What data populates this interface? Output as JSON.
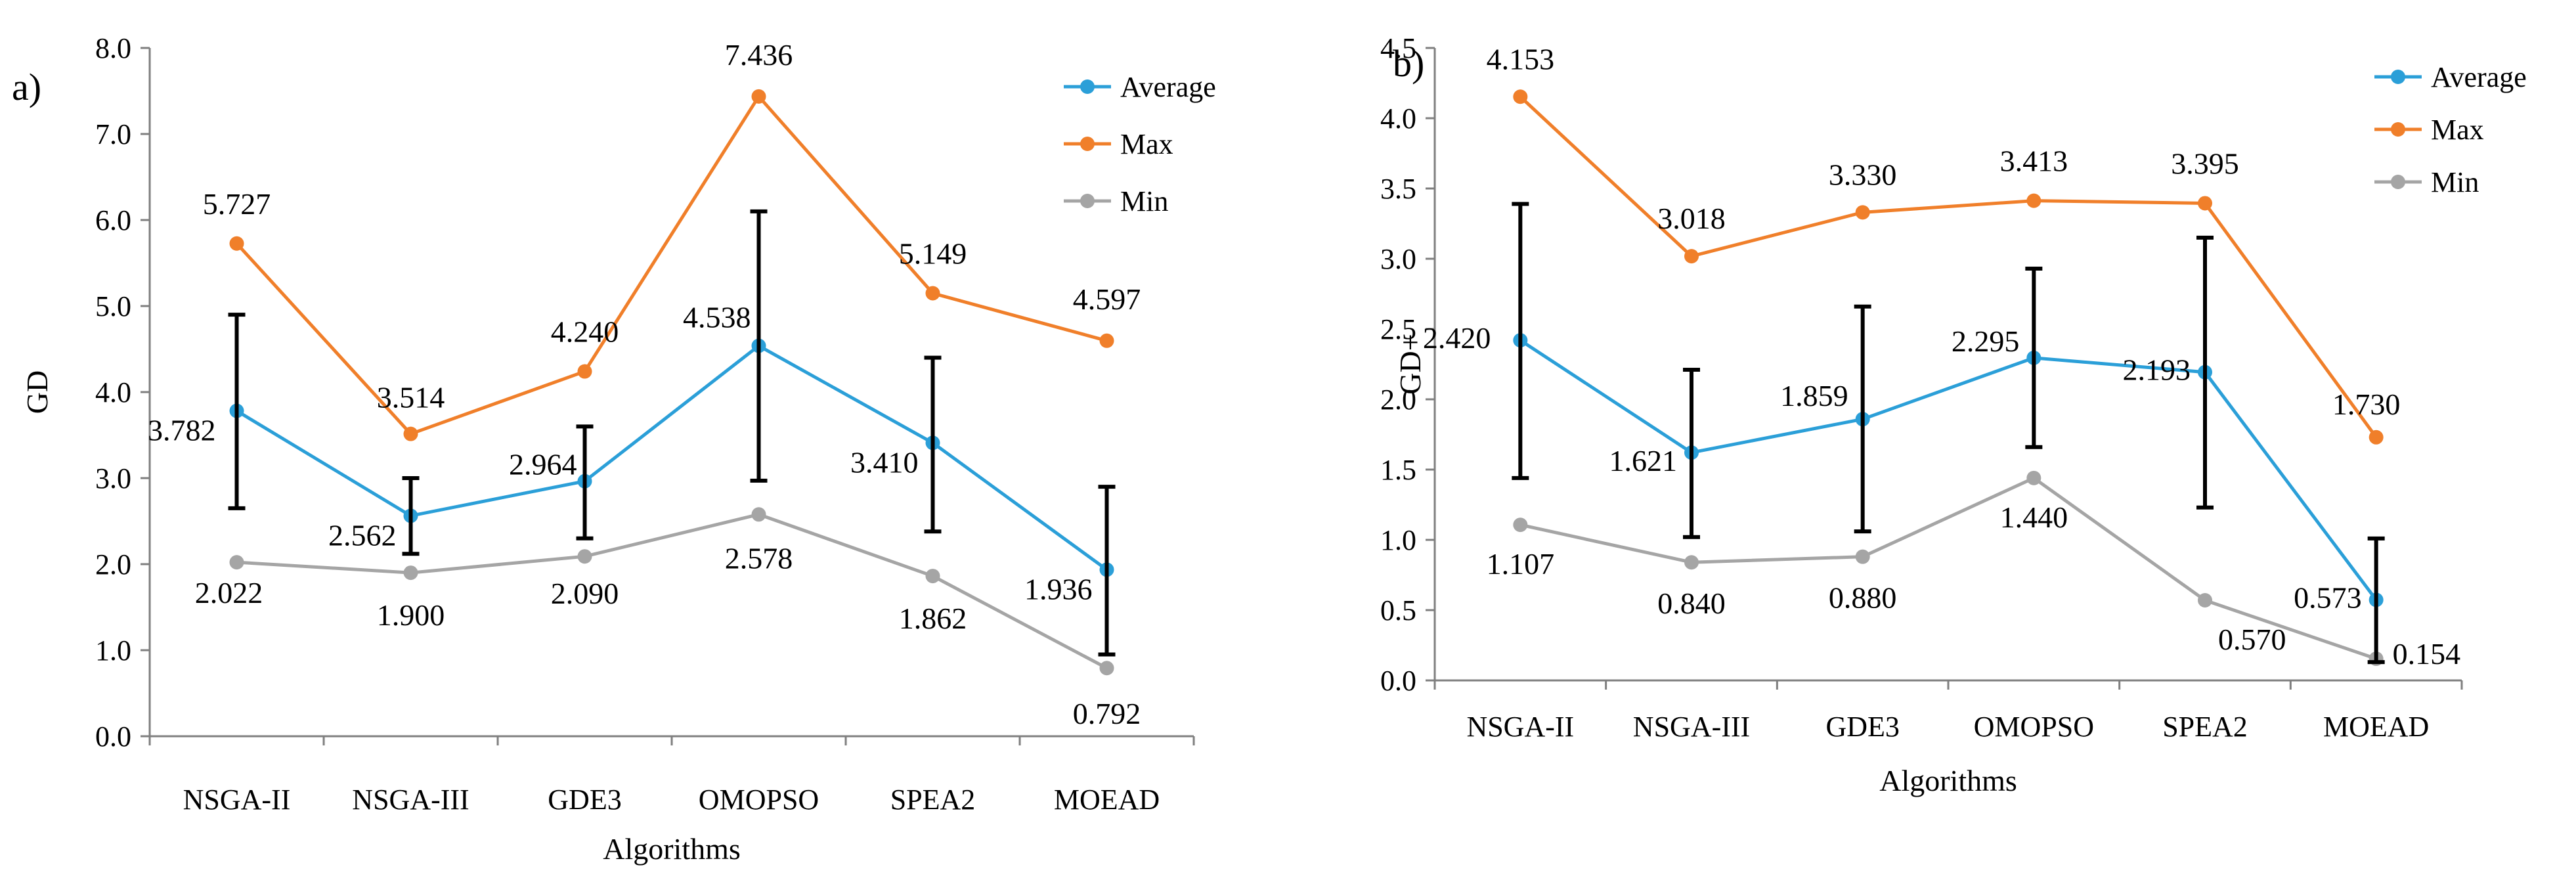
{
  "chart_data": [
    {
      "type": "line",
      "panel_label": "a)",
      "xlabel": "Algorithms",
      "ylabel": "GD",
      "categories": [
        "NSGA-II",
        "NSGA-III",
        "GDE3",
        "OMOPSO",
        "SPEA2",
        "MOEAD"
      ],
      "ylim": [
        0,
        8
      ],
      "ytick_step": 1,
      "ytick_labels": [
        "0.0",
        "1.0",
        "2.0",
        "3.0",
        "4.0",
        "5.0",
        "6.0",
        "7.0",
        "8.0"
      ],
      "grid": false,
      "legend_position": "top-right",
      "series": [
        {
          "name": "Average",
          "color": "#2b9fd8",
          "values": [
            3.782,
            2.562,
            2.964,
            4.538,
            3.41,
            1.936
          ],
          "labels": [
            "3.782",
            "2.562",
            "2.964",
            "4.538",
            "3.410",
            "1.936"
          ],
          "error_bars": {
            "lower": [
              2.65,
              2.12,
              2.3,
              2.97,
              2.38,
              0.95
            ],
            "upper": [
              4.9,
              3.0,
              3.6,
              6.1,
              4.4,
              2.9
            ]
          }
        },
        {
          "name": "Max",
          "color": "#f07f2a",
          "values": [
            5.727,
            3.514,
            4.24,
            7.436,
            5.149,
            4.597
          ],
          "labels": [
            "5.727",
            "3.514",
            "4.240",
            "7.436",
            "5.149",
            "4.597"
          ]
        },
        {
          "name": "Min",
          "color": "#a5a5a5",
          "values": [
            2.022,
            1.9,
            2.09,
            2.578,
            1.862,
            0.792
          ],
          "labels": [
            "2.022",
            "1.900",
            "2.090",
            "2.578",
            "1.862",
            "0.792"
          ]
        }
      ]
    },
    {
      "type": "line",
      "panel_label": "b)",
      "xlabel": "Algorithms",
      "ylabel": "GD+",
      "categories": [
        "NSGA-II",
        "NSGA-III",
        "GDE3",
        "OMOPSO",
        "SPEA2",
        "MOEAD"
      ],
      "ylim": [
        0,
        4.5
      ],
      "ytick_step": 0.5,
      "ytick_labels": [
        "0.0",
        "0.5",
        "1.0",
        "1.5",
        "2.0",
        "2.5",
        "3.0",
        "3.5",
        "4.0",
        "4.5"
      ],
      "grid": false,
      "legend_position": "top-right",
      "series": [
        {
          "name": "Average",
          "color": "#2b9fd8",
          "values": [
            2.42,
            1.621,
            1.859,
            2.295,
            2.193,
            0.573
          ],
          "labels": [
            "2.420",
            "1.621",
            "1.859",
            "2.295",
            "2.193",
            "0.573"
          ],
          "error_bars": {
            "lower": [
              1.44,
              1.02,
              1.06,
              1.66,
              1.23,
              0.13
            ],
            "upper": [
              3.39,
              2.21,
              2.66,
              2.93,
              3.15,
              1.01
            ]
          }
        },
        {
          "name": "Max",
          "color": "#f07f2a",
          "values": [
            4.153,
            3.018,
            3.33,
            3.413,
            3.395,
            1.73
          ],
          "labels": [
            "4.153",
            "3.018",
            "3.330",
            "3.413",
            "3.395",
            "1.730"
          ]
        },
        {
          "name": "Min",
          "color": "#a5a5a5",
          "values": [
            1.107,
            0.84,
            0.88,
            1.44,
            0.57,
            0.154
          ],
          "labels": [
            "1.107",
            "0.840",
            "0.880",
            "1.440",
            "0.570",
            "0.154"
          ]
        }
      ]
    }
  ]
}
